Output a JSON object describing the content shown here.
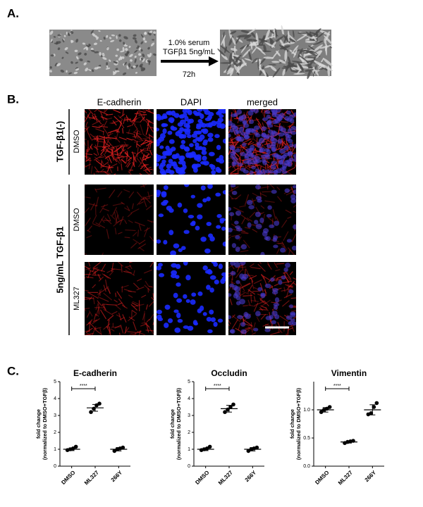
{
  "panel_a": {
    "label": "A.",
    "treatment": [
      "1.0% serum",
      "TGFβ1  5ng/mL"
    ],
    "duration": "72h"
  },
  "panel_b": {
    "label": "B.",
    "columns": [
      "E-cadherin",
      "DAPI",
      "merged"
    ],
    "groups": [
      {
        "label": "TGF-β1(-)",
        "rows": [
          "DMSO"
        ]
      },
      {
        "label": "5ng/mL  TGF-β1",
        "rows": [
          "DMSO",
          "ML327"
        ]
      }
    ]
  },
  "panel_c": {
    "label": "C."
  },
  "chart_data": [
    {
      "type": "dot",
      "title": "E-cadherin",
      "ylabel": [
        "fold change",
        "(normalized to DMSO+TGFβ)"
      ],
      "categories": [
        "DMSO",
        "ML327",
        "266Y"
      ],
      "values": [
        [
          0.95,
          1.0,
          1.05,
          1.15
        ],
        [
          3.2,
          3.4,
          3.6,
          3.7
        ],
        [
          0.9,
          1.0,
          1.05,
          1.1
        ]
      ],
      "mean": [
        1.0,
        3.45,
        1.0
      ],
      "sd": [
        0.08,
        0.2,
        0.1
      ],
      "ylim": [
        0,
        5
      ],
      "yticks": [
        0,
        1,
        2,
        3,
        4,
        5
      ],
      "annotation": "****",
      "color": "#000000"
    },
    {
      "type": "dot",
      "title": "Occludin",
      "ylabel": [
        "fold change",
        "(normalized to DMSO+TGFβ)"
      ],
      "categories": [
        "DMSO",
        "ML327",
        "266Y"
      ],
      "values": [
        [
          0.95,
          1.0,
          1.05,
          1.15
        ],
        [
          3.2,
          3.35,
          3.5,
          3.65
        ],
        [
          0.9,
          1.0,
          1.05,
          1.1
        ]
      ],
      "mean": [
        1.0,
        3.4,
        1.0
      ],
      "sd": [
        0.08,
        0.2,
        0.1
      ],
      "ylim": [
        0,
        5
      ],
      "yticks": [
        0,
        1,
        2,
        3,
        4,
        5
      ],
      "annotation": "****",
      "color": "#000000"
    },
    {
      "type": "dot",
      "title": "Vimentin",
      "ylabel": [
        "fold change",
        "(normalized to DMSO+TGFβ)"
      ],
      "categories": [
        "DMSO",
        "ML327",
        "266Y"
      ],
      "values": [
        [
          0.96,
          1.0,
          1.02,
          1.05
        ],
        [
          0.41,
          0.43,
          0.44,
          0.45
        ],
        [
          0.92,
          0.94,
          1.05,
          1.12
        ]
      ],
      "mean": [
        1.0,
        0.43,
        1.0
      ],
      "sd": [
        0.04,
        0.02,
        0.09
      ],
      "ylim": [
        0,
        1.5
      ],
      "yticks": [
        {
          "value": 0,
          "label": "0.0"
        },
        {
          "value": 0.5,
          "label": "0.5"
        },
        {
          "value": 1,
          "label": "1.0"
        }
      ],
      "annotation": "****",
      "color": "#000000"
    }
  ]
}
